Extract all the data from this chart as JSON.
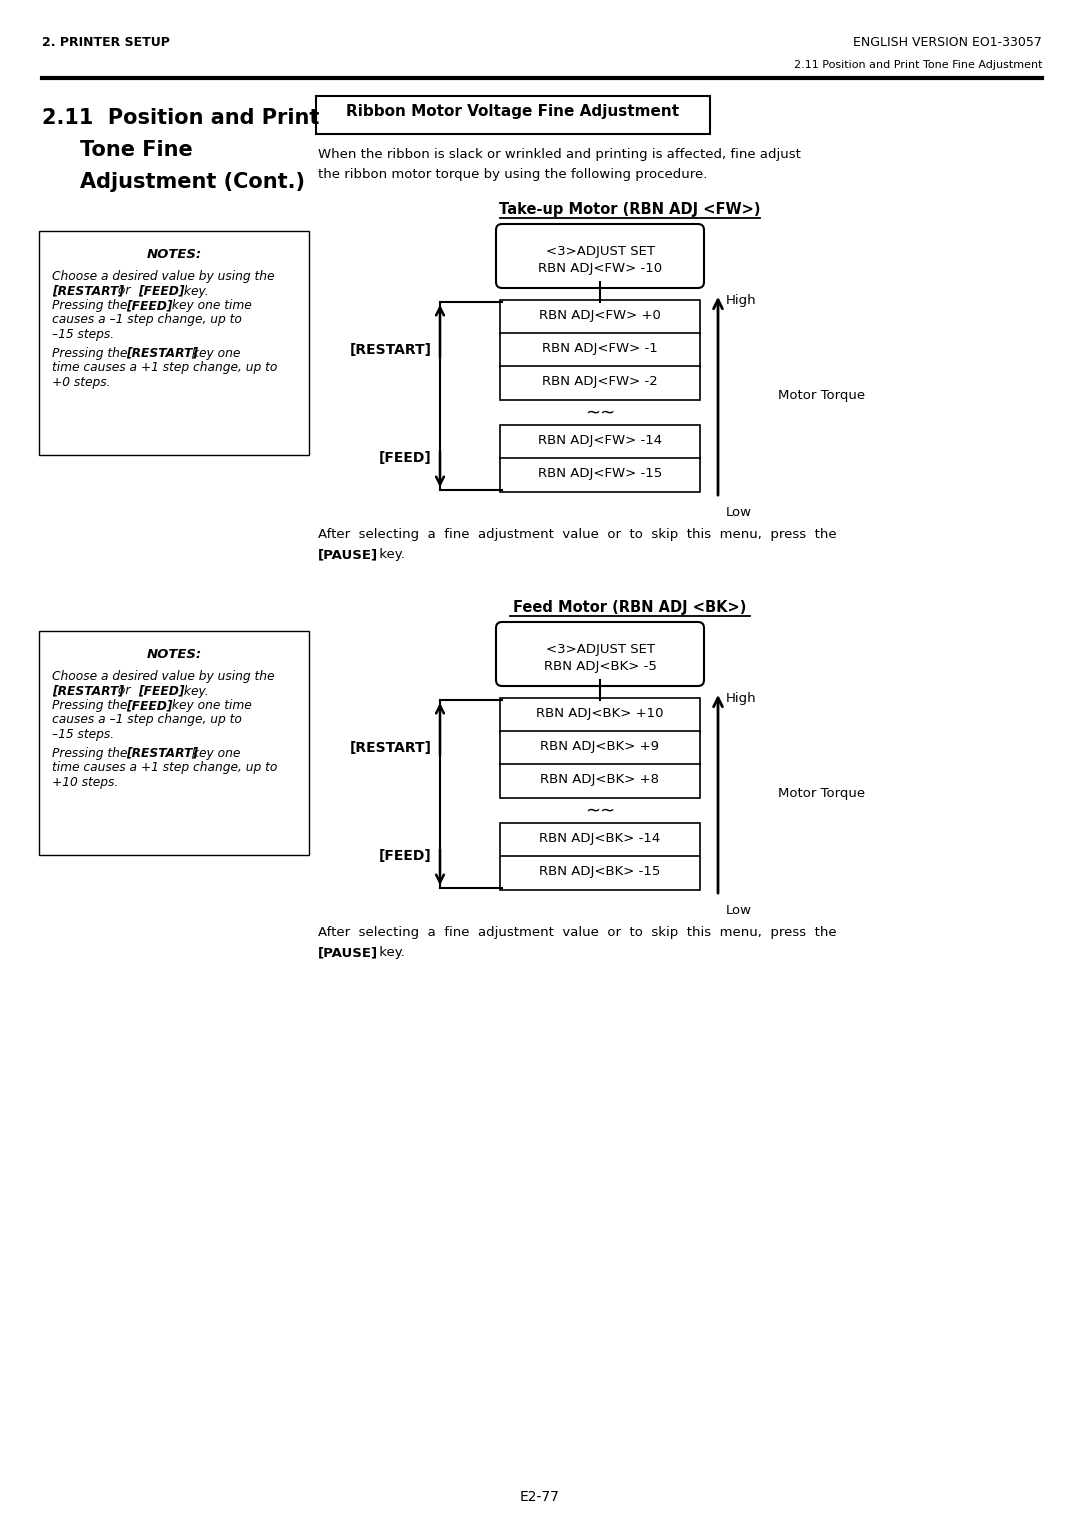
{
  "page_title_left": "2. PRINTER SETUP",
  "page_title_right": "ENGLISH VERSION EO1-33057",
  "page_subtitle_right": "2.11 Position and Print Tone Fine Adjustment",
  "ribbon_box_title": "Ribbon Motor Voltage Fine Adjustment",
  "intro_text_1": "When the ribbon is slack or wrinkled and printing is affected, fine adjust",
  "intro_text_2": "the ribbon motor torque by using the following procedure.",
  "diagram1_title": "Take-up Motor (RBN ADJ <FW>)",
  "diagram2_title": "Feed Motor (RBN ADJ <BK>)",
  "fw_adjust_set_1": "<3>ADJUST SET",
  "fw_adjust_set_2": "RBN ADJ<FW> -10",
  "bk_adjust_set_1": "<3>ADJUST SET",
  "bk_adjust_set_2": "RBN ADJ<BK> -5",
  "fw_boxes": [
    "RBN ADJ<FW> +0",
    "RBN ADJ<FW> -1",
    "RBN ADJ<FW> -2",
    "RBN ADJ<FW> -14",
    "RBN ADJ<FW> -15"
  ],
  "bk_boxes": [
    "RBN ADJ<BK> +10",
    "RBN ADJ<BK> +9",
    "RBN ADJ<BK> +8",
    "RBN ADJ<BK> -14",
    "RBN ADJ<BK> -15"
  ],
  "restart_label": "[RESTART]",
  "feed_label": "[FEED]",
  "high_label": "High",
  "low_label": "Low",
  "motor_torque_label": "Motor Torque",
  "pause_line1": "After  selecting  a  fine  adjustment  value  or  to  skip  this  menu,  press  the",
  "pause_bold": "[PAUSE]",
  "pause_line2": " key.",
  "page_number": "E2-77",
  "bg_color": "#ffffff"
}
